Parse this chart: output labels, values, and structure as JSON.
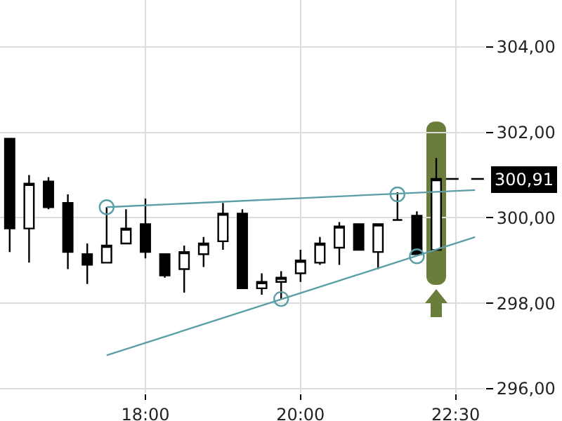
{
  "chart_data": {
    "type": "candlestick",
    "categories": [
      null,
      null,
      null,
      null,
      null,
      null,
      null,
      "18:00",
      null,
      null,
      null,
      null,
      null,
      null,
      null,
      "20:00",
      null,
      null,
      null,
      null,
      null,
      null,
      null,
      "22:30",
      null
    ],
    "ohlc": [
      [
        301.85,
        301.85,
        299.2,
        299.75
      ],
      [
        299.75,
        301.0,
        298.95,
        300.8
      ],
      [
        300.85,
        300.95,
        300.2,
        300.25
      ],
      [
        300.35,
        300.55,
        298.8,
        299.2
      ],
      [
        299.15,
        299.4,
        298.45,
        298.9
      ],
      [
        298.95,
        300.25,
        298.95,
        299.35
      ],
      [
        299.4,
        300.2,
        299.4,
        299.75
      ],
      [
        299.85,
        300.45,
        299.05,
        299.2
      ],
      [
        299.15,
        299.15,
        298.6,
        298.65
      ],
      [
        298.8,
        299.35,
        298.25,
        299.2
      ],
      [
        299.15,
        299.55,
        298.85,
        299.4
      ],
      [
        299.45,
        300.35,
        299.25,
        300.1
      ],
      [
        300.1,
        300.2,
        298.35,
        298.35
      ],
      [
        298.35,
        298.7,
        298.2,
        298.5
      ],
      [
        298.5,
        298.75,
        298.1,
        298.6
      ],
      [
        298.7,
        299.25,
        298.5,
        299.0
      ],
      [
        298.95,
        299.55,
        298.9,
        299.4
      ],
      [
        299.3,
        299.9,
        298.9,
        299.8
      ],
      [
        299.85,
        299.85,
        299.25,
        299.25
      ],
      [
        299.2,
        299.85,
        298.8,
        299.85
      ],
      [
        299.95,
        300.6,
        299.95,
        299.95
      ],
      [
        300.05,
        300.15,
        299.15,
        299.15
      ],
      [
        299.25,
        301.4,
        299.25,
        300.91
      ],
      null,
      null
    ],
    "series": [
      {
        "type": "line",
        "color": "#5b9ea6",
        "values": [
          null,
          null,
          null,
          null,
          null,
          300.25,
          null,
          null,
          null,
          null,
          null,
          null,
          null,
          null,
          null,
          null,
          null,
          null,
          null,
          null,
          null,
          null,
          null,
          null,
          300.65
        ]
      },
      {
        "type": "line",
        "color": "#5b9ea6",
        "values": [
          null,
          null,
          null,
          null,
          null,
          296.78,
          null,
          null,
          null,
          null,
          null,
          null,
          null,
          null,
          null,
          null,
          null,
          null,
          null,
          null,
          null,
          null,
          null,
          null,
          299.55
        ]
      },
      {
        "type": "scatter",
        "color": "#5b9ea6",
        "marker": "circle",
        "values": [
          null,
          null,
          null,
          null,
          null,
          300.25,
          null,
          null,
          null,
          null,
          null,
          null,
          null,
          null,
          298.1,
          null,
          null,
          null,
          null,
          null,
          300.55,
          299.1,
          null,
          null,
          null
        ]
      }
    ],
    "ylim": [
      295.9,
      305.1
    ],
    "yticks": [
      {
        "value": 296,
        "label": "296,00"
      },
      {
        "value": 298,
        "label": "298,00"
      },
      {
        "value": 300,
        "label": "300,00"
      },
      {
        "value": 302,
        "label": "302,00"
      },
      {
        "value": 304,
        "label": "304,00"
      }
    ],
    "ref_lines": [
      {
        "axis": "y",
        "value": 300.91,
        "label": "300,91",
        "color": "#000000",
        "line_style": "dashed"
      }
    ],
    "grid": true
  }
}
